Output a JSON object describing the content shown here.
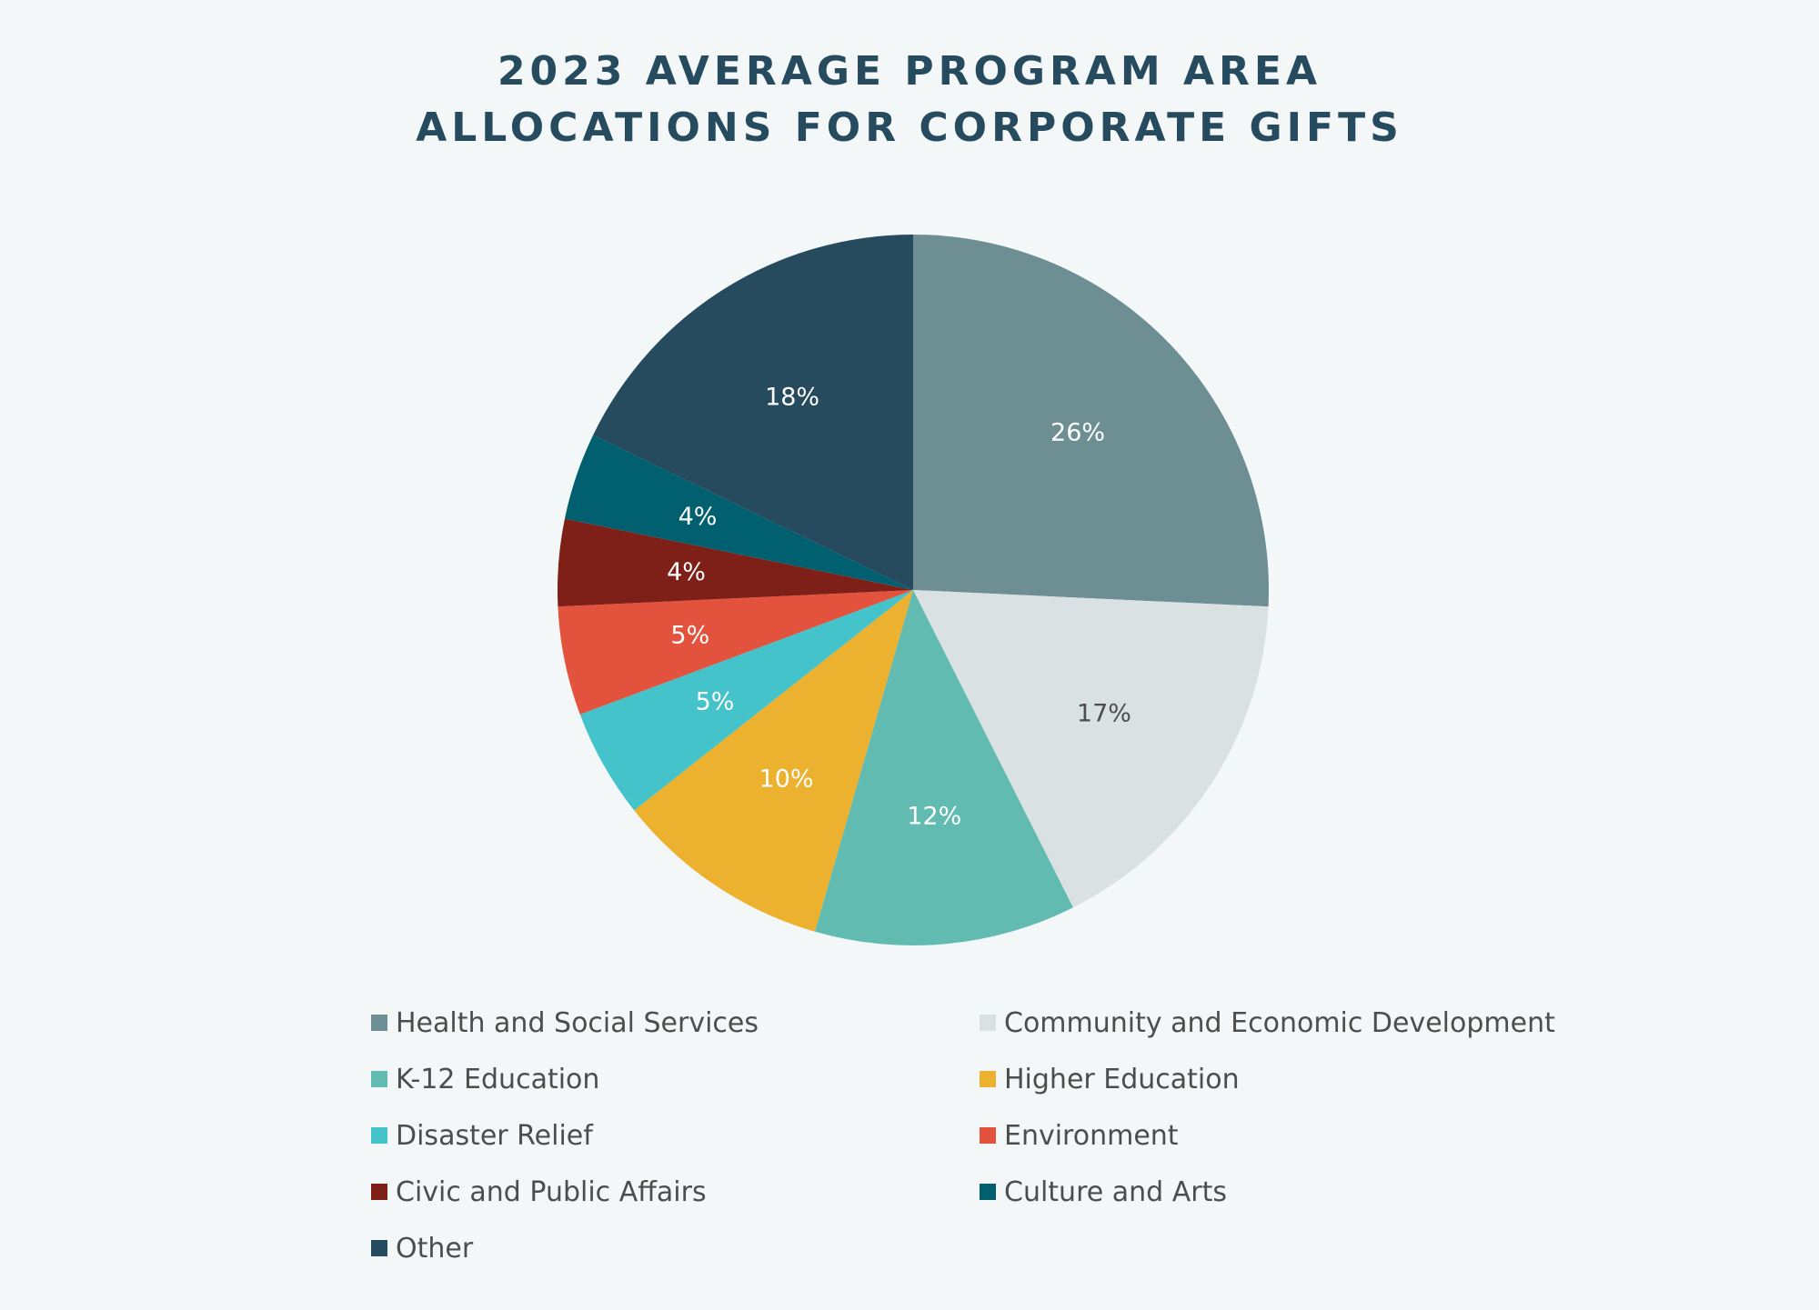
{
  "title_lines": [
    "2023 AVERAGE PROGRAM AREA",
    "ALLOCATIONS FOR CORPORATE GIFTS"
  ],
  "chart_data": {
    "type": "pie",
    "title": "2023 AVERAGE PROGRAM AREA ALLOCATIONS FOR CORPORATE GIFTS",
    "unit": "%",
    "legend_position": "bottom",
    "slices": [
      {
        "label": "Health and Social Services",
        "value": 26,
        "display": "26%",
        "color": "#6d8f93",
        "label_color": "#ffffff"
      },
      {
        "label": "Community and Economic Development",
        "value": 17,
        "display": "17%",
        "color": "#d9e1e2",
        "label_color": "#4d4d4d"
      },
      {
        "label": "K-12 Education",
        "value": 12,
        "display": "12%",
        "color": "#62bbb0",
        "label_color": "#ffffff"
      },
      {
        "label": "Higher Education",
        "value": 10,
        "display": "10%",
        "color": "#ebb12f",
        "label_color": "#ffffff"
      },
      {
        "label": "Disaster Relief",
        "value": 5,
        "display": "5%",
        "color": "#45c3cb",
        "label_color": "#ffffff"
      },
      {
        "label": "Environment",
        "value": 5,
        "display": "5%",
        "color": "#e2523d",
        "label_color": "#ffffff"
      },
      {
        "label": "Civic and Public Affairs",
        "value": 4,
        "display": "4%",
        "color": "#7e2017",
        "label_color": "#ffffff"
      },
      {
        "label": "Culture and Arts",
        "value": 4,
        "display": "4%",
        "color": "#00606f",
        "label_color": "#ffffff"
      },
      {
        "label": "Other",
        "value": 18,
        "display": "18%",
        "color": "#264a5e",
        "label_color": "#ffffff"
      }
    ]
  }
}
